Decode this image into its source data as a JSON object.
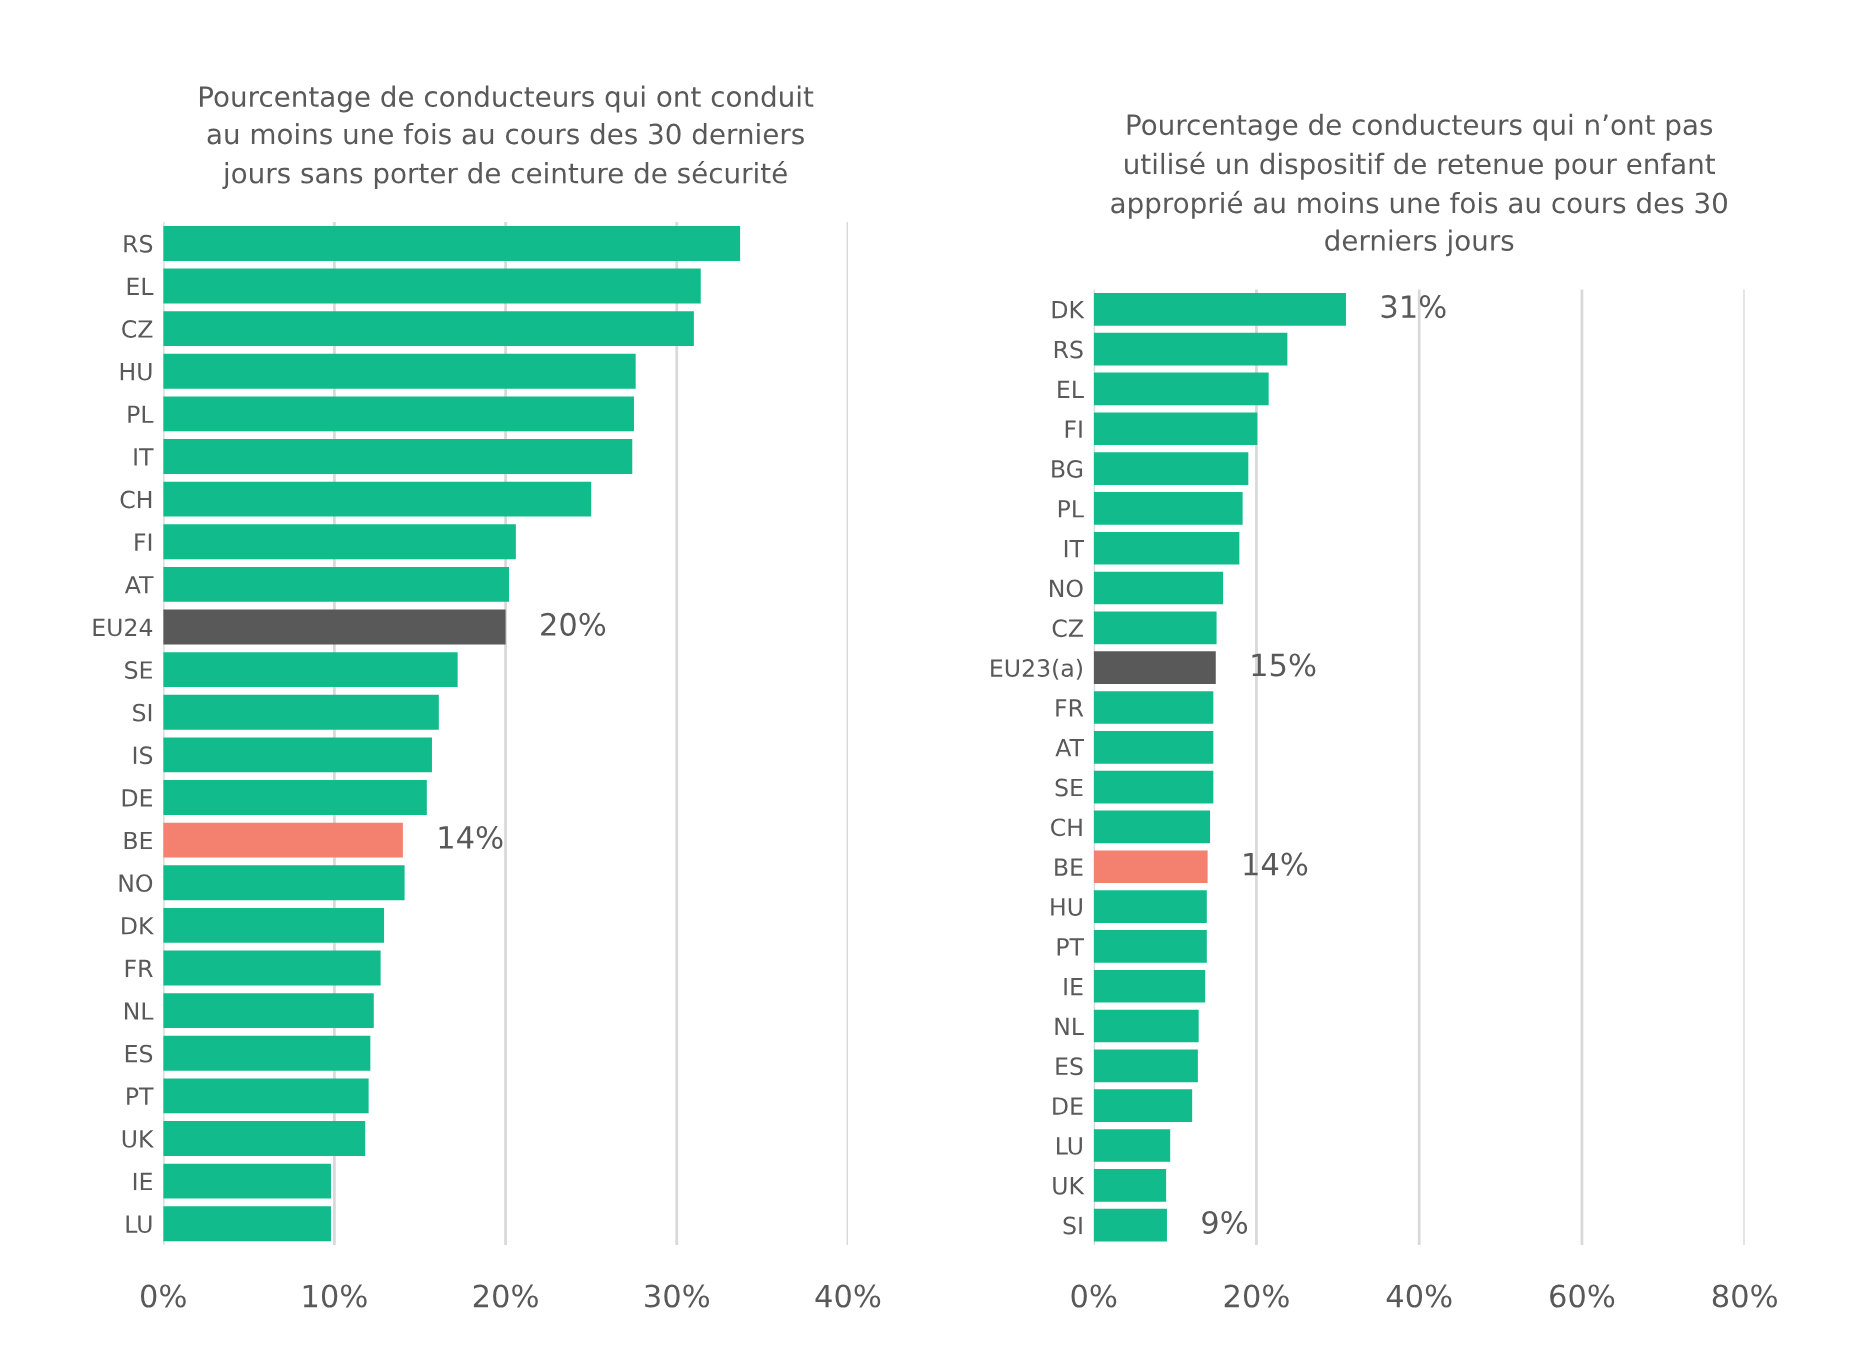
{
  "chart_data": [
    {
      "type": "bar",
      "orientation": "horizontal",
      "title": "Pourcentage de conducteurs qui ont conduit\nau moins une fois au cours des 30 derniers\njours sans porter de ceinture de sécurité",
      "categories": [
        "RS",
        "EL",
        "CZ",
        "HU",
        "PL",
        "IT",
        "CH",
        "FI",
        "AT",
        "EU24",
        "SE",
        "SI",
        "IS",
        "DE",
        "BE",
        "NO",
        "DK",
        "FR",
        "NL",
        "ES",
        "PT",
        "UK",
        "IE",
        "LU"
      ],
      "values": [
        33.7,
        31.4,
        31.0,
        27.6,
        27.5,
        27.4,
        25.0,
        20.6,
        20.2,
        20,
        17.2,
        16.1,
        15.7,
        15.4,
        14,
        14.1,
        12.9,
        12.7,
        12.3,
        12.1,
        12.0,
        11.8,
        9.8,
        9.8
      ],
      "colors": [
        "#12bb8b",
        "#12bb8b",
        "#12bb8b",
        "#12bb8b",
        "#12bb8b",
        "#12bb8b",
        "#12bb8b",
        "#12bb8b",
        "#12bb8b",
        "#595959",
        "#12bb8b",
        "#12bb8b",
        "#12bb8b",
        "#12bb8b",
        "#f4806f",
        "#12bb8b",
        "#12bb8b",
        "#12bb8b",
        "#12bb8b",
        "#12bb8b",
        "#12bb8b",
        "#12bb8b",
        "#12bb8b",
        "#12bb8b"
      ],
      "value_labels": [
        null,
        null,
        null,
        null,
        null,
        null,
        null,
        null,
        null,
        "20%",
        null,
        null,
        null,
        null,
        "14%",
        null,
        null,
        null,
        null,
        null,
        null,
        null,
        null,
        null
      ],
      "xlim": [
        0,
        40
      ],
      "xticks": [
        {
          "value": 0,
          "label": "0%"
        },
        {
          "value": 10,
          "label": "10%"
        },
        {
          "value": 20,
          "label": "20%"
        },
        {
          "value": 30,
          "label": "30%"
        },
        {
          "value": 40,
          "label": "40%"
        }
      ],
      "grid": "x"
    },
    {
      "type": "bar",
      "orientation": "horizontal",
      "title": "Pourcentage de conducteurs qui n’ont pas\nutilisé un dispositif de retenue pour enfant\napproprié au moins une fois au cours des 30\nderniers jours",
      "categories": [
        "DK",
        "RS",
        "EL",
        "FI",
        "BG",
        "PL",
        "IT",
        "NO",
        "CZ",
        "EU23(a)",
        "FR",
        "AT",
        "SE",
        "CH",
        "BE",
        "HU",
        "PT",
        "IE",
        "NL",
        "ES",
        "DE",
        "LU",
        "UK",
        "SI"
      ],
      "values": [
        31,
        23.8,
        21.5,
        20.1,
        19.0,
        18.3,
        17.9,
        15.9,
        15.1,
        15,
        14.7,
        14.7,
        14.7,
        14.3,
        14,
        13.9,
        13.9,
        13.7,
        12.9,
        12.8,
        12.1,
        9.4,
        8.9,
        9
      ],
      "colors": [
        "#12bb8b",
        "#12bb8b",
        "#12bb8b",
        "#12bb8b",
        "#12bb8b",
        "#12bb8b",
        "#12bb8b",
        "#12bb8b",
        "#12bb8b",
        "#595959",
        "#12bb8b",
        "#12bb8b",
        "#12bb8b",
        "#12bb8b",
        "#f4806f",
        "#12bb8b",
        "#12bb8b",
        "#12bb8b",
        "#12bb8b",
        "#12bb8b",
        "#12bb8b",
        "#12bb8b",
        "#12bb8b",
        "#12bb8b"
      ],
      "value_labels": [
        "31%",
        null,
        null,
        null,
        null,
        null,
        null,
        null,
        null,
        "15%",
        null,
        null,
        null,
        null,
        "14%",
        null,
        null,
        null,
        null,
        null,
        null,
        null,
        null,
        "9%"
      ],
      "xlim": [
        0,
        80
      ],
      "xticks": [
        {
          "value": 0,
          "label": "0%"
        },
        {
          "value": 20,
          "label": "20%"
        },
        {
          "value": 40,
          "label": "40%"
        },
        {
          "value": 60,
          "label": "60%"
        },
        {
          "value": 80,
          "label": "80%"
        }
      ],
      "grid": "x"
    }
  ]
}
